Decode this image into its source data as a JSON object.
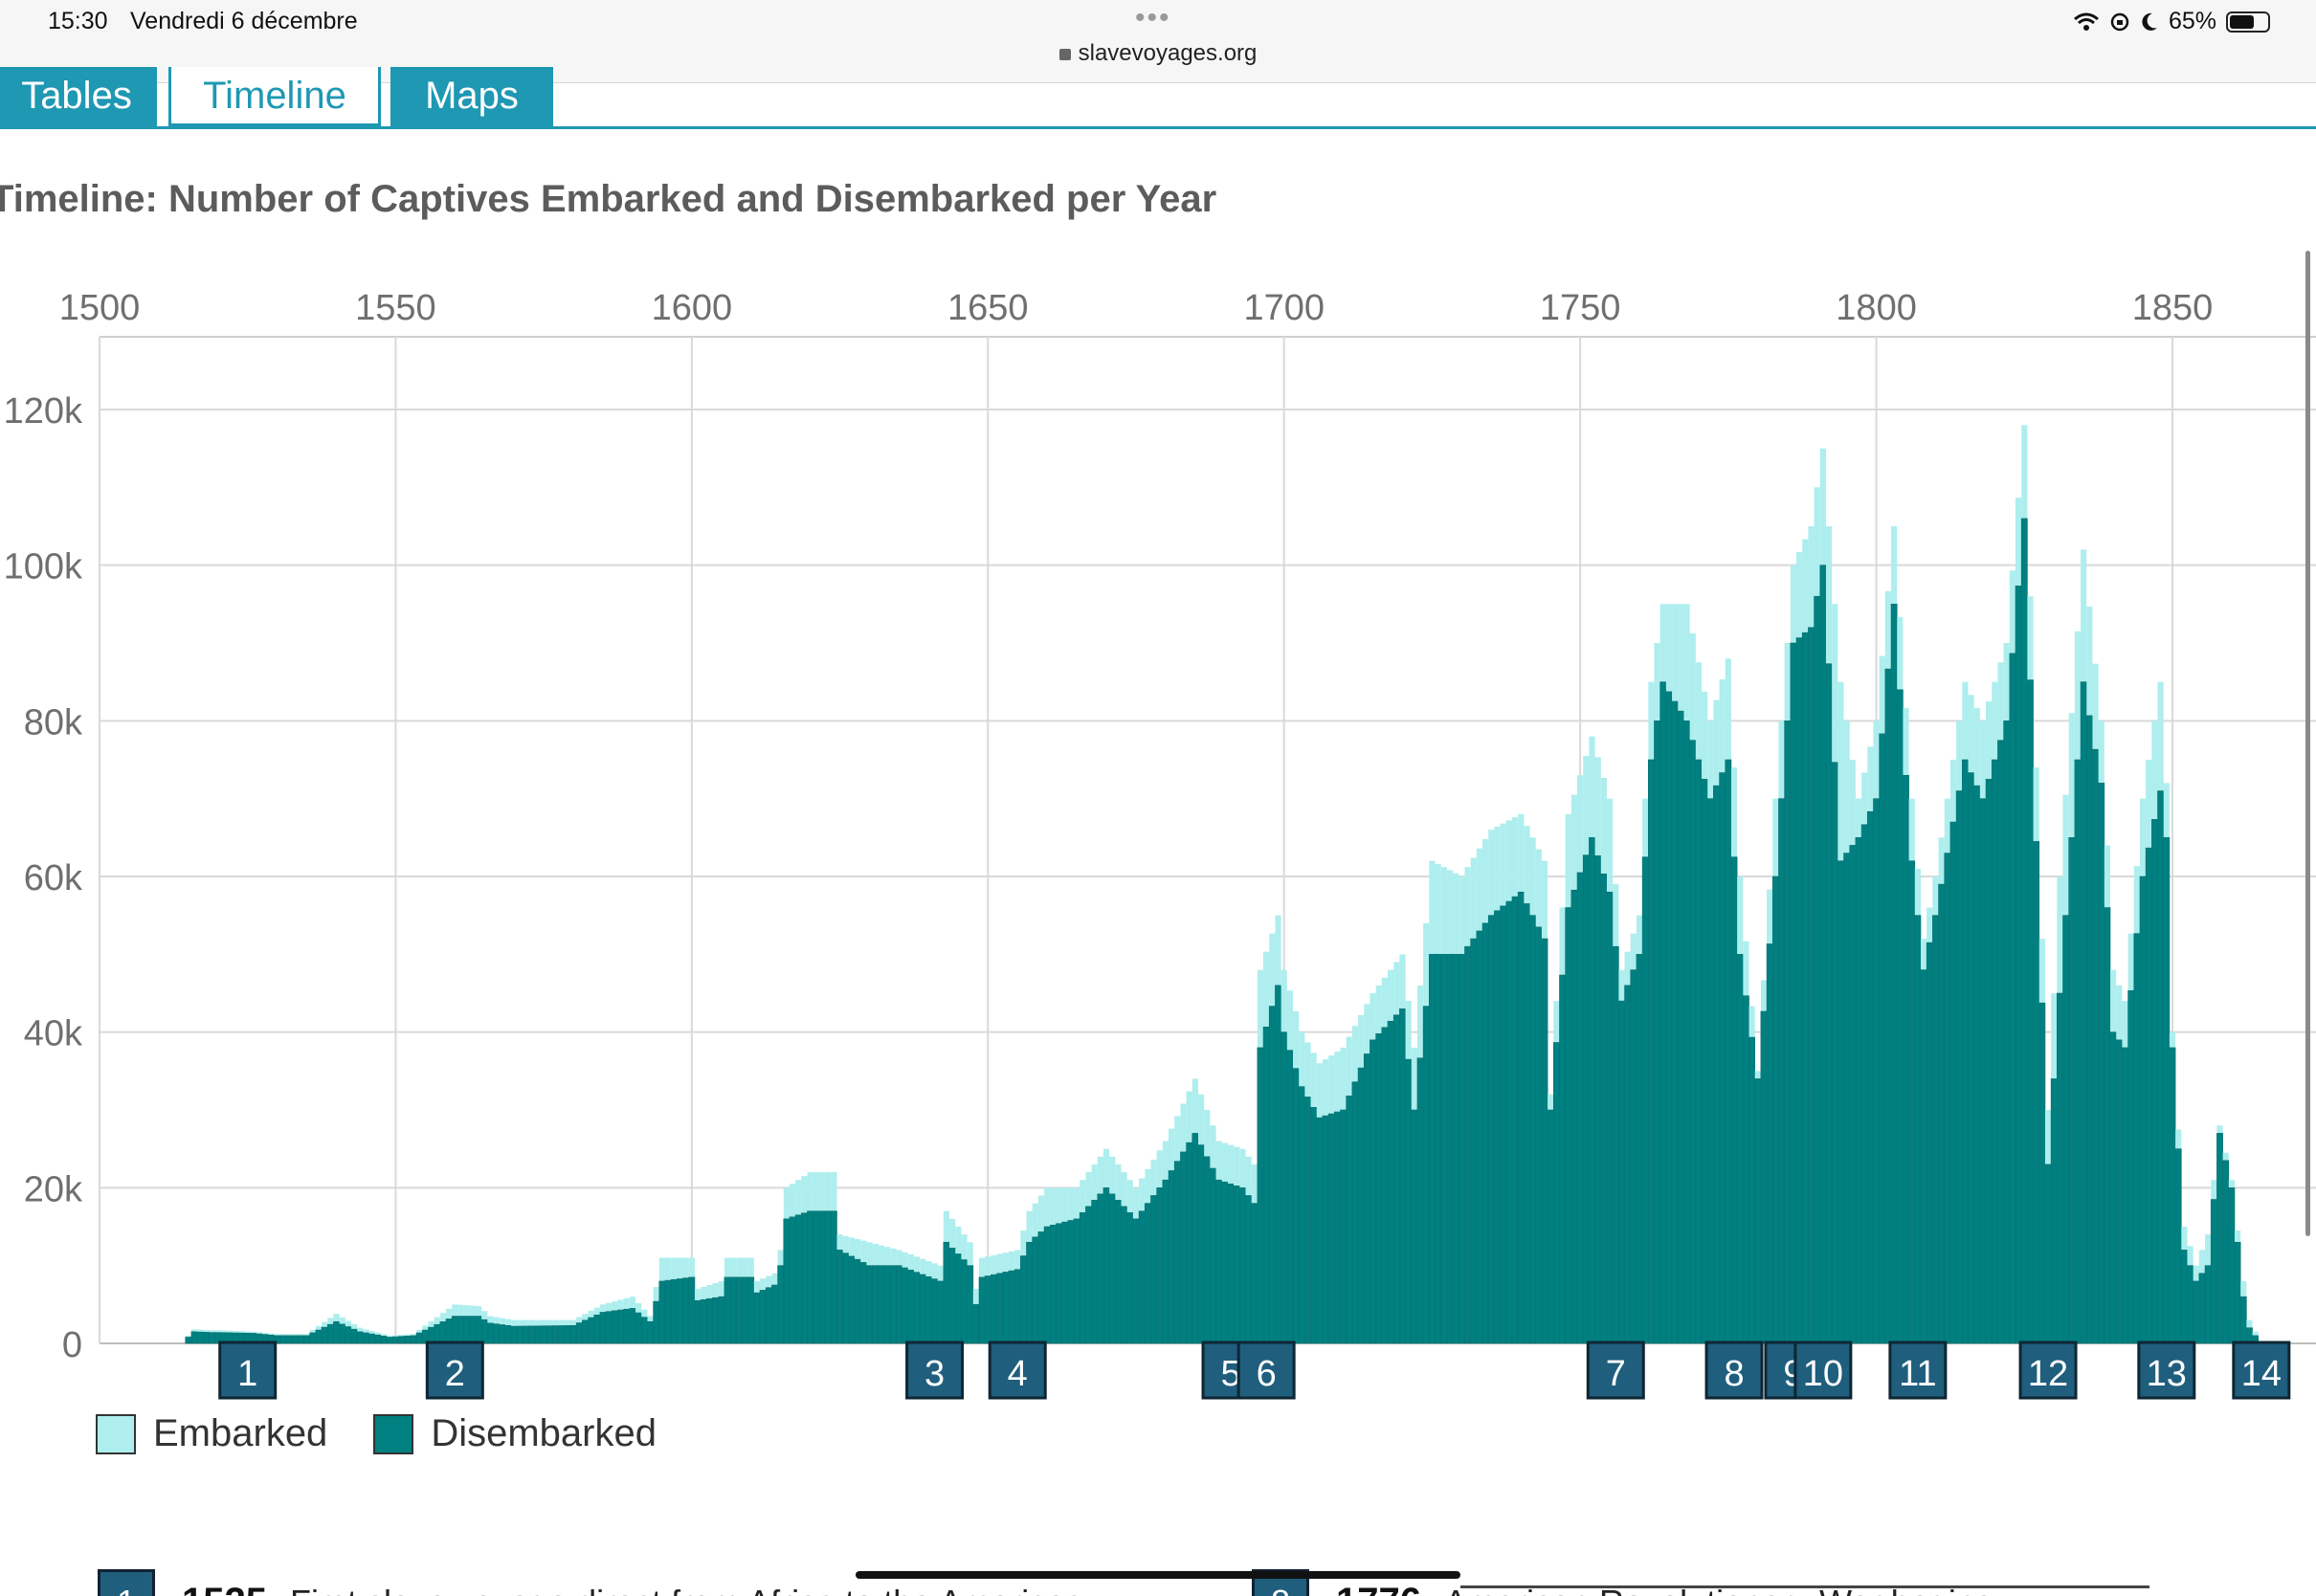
{
  "status_bar": {
    "time": "15:30",
    "date": "Vendredi 6 décembre",
    "url": "slavevoyages.org",
    "battery": "65%",
    "battery_level": 0.65,
    "icons": [
      "wifi-icon",
      "orientation-lock-icon",
      "moon-icon",
      "battery-icon"
    ]
  },
  "tabs": [
    {
      "label": "Tables",
      "active": false
    },
    {
      "label": "Timeline",
      "active": true
    },
    {
      "label": "Maps",
      "active": false
    }
  ],
  "colors": {
    "embarked": "#aeeeee",
    "disembarked": "#008080",
    "accent": "#1e98b3",
    "marker": "#1f5e7d"
  },
  "chart_data": {
    "type": "bar",
    "title": "Timeline: Number of Captives Embarked and Disembarked per Year",
    "xlabel": "",
    "ylabel": "",
    "xlim": [
      1500,
      1866
    ],
    "ylim": [
      0,
      130000
    ],
    "x_ticks": [
      "1500",
      "1550",
      "1600",
      "1650",
      "1700",
      "1750",
      "1800",
      "1850"
    ],
    "x_tick_values": [
      1500,
      1550,
      1600,
      1650,
      1700,
      1750,
      1800,
      1850
    ],
    "y_ticks": [
      "0",
      "20k",
      "40k",
      "60k",
      "80k",
      "100k",
      "120k"
    ],
    "y_tick_values": [
      0,
      20000,
      40000,
      60000,
      80000,
      100000,
      120000
    ],
    "grid": true,
    "legend_position": "bottom-left",
    "series_names": [
      "Embarked",
      "Disembarked"
    ],
    "stacked_overlay": true,
    "key_points": [
      [
        1514,
        0,
        0
      ],
      [
        1515,
        1000,
        800
      ],
      [
        1516,
        1800,
        1500
      ],
      [
        1519,
        1700,
        1400
      ],
      [
        1520,
        1700,
        1400
      ],
      [
        1526,
        1500,
        1300
      ],
      [
        1530,
        1200,
        1000
      ],
      [
        1535,
        1200,
        1000
      ],
      [
        1540,
        3800,
        2800
      ],
      [
        1544,
        2000,
        1500
      ],
      [
        1549,
        1000,
        800
      ],
      [
        1553,
        1200,
        1000
      ],
      [
        1560,
        5000,
        3500
      ],
      [
        1564,
        4800,
        3500
      ],
      [
        1566,
        3500,
        2600
      ],
      [
        1570,
        3000,
        2200
      ],
      [
        1580,
        3000,
        2300
      ],
      [
        1585,
        5000,
        4000
      ],
      [
        1590,
        6000,
        4500
      ],
      [
        1593,
        3500,
        2800
      ],
      [
        1595,
        11000,
        8000
      ],
      [
        1600,
        11000,
        8500
      ],
      [
        1601,
        7000,
        5500
      ],
      [
        1605,
        8000,
        6000
      ],
      [
        1606,
        11000,
        8500
      ],
      [
        1610,
        11000,
        8500
      ],
      [
        1611,
        8000,
        6500
      ],
      [
        1614,
        9000,
        7500
      ],
      [
        1615,
        12000,
        10000
      ],
      [
        1616,
        20000,
        16000
      ],
      [
        1620,
        22000,
        17000
      ],
      [
        1624,
        22000,
        17000
      ],
      [
        1625,
        14000,
        12000
      ],
      [
        1630,
        13000,
        10000
      ],
      [
        1635,
        12000,
        10000
      ],
      [
        1642,
        10000,
        8000
      ],
      [
        1643,
        17000,
        13000
      ],
      [
        1647,
        13000,
        10000
      ],
      [
        1648,
        7000,
        5000
      ],
      [
        1649,
        11000,
        8500
      ],
      [
        1655,
        12000,
        9500
      ],
      [
        1657,
        17000,
        13000
      ],
      [
        1660,
        20000,
        15000
      ],
      [
        1665,
        20000,
        16000
      ],
      [
        1670,
        25000,
        20000
      ],
      [
        1675,
        20000,
        16000
      ],
      [
        1680,
        26000,
        21000
      ],
      [
        1685,
        34000,
        27000
      ],
      [
        1689,
        26000,
        21000
      ],
      [
        1693,
        25000,
        20000
      ],
      [
        1695,
        23000,
        18000
      ],
      [
        1696,
        48000,
        38000
      ],
      [
        1699,
        55000,
        46000
      ],
      [
        1700,
        48000,
        40000
      ],
      [
        1703,
        40000,
        33000
      ],
      [
        1706,
        36000,
        29000
      ],
      [
        1710,
        38000,
        30000
      ],
      [
        1715,
        45000,
        39000
      ],
      [
        1720,
        50000,
        43000
      ],
      [
        1722,
        38000,
        30000
      ],
      [
        1725,
        62000,
        50000
      ],
      [
        1730,
        60000,
        50000
      ],
      [
        1735,
        66000,
        55000
      ],
      [
        1740,
        68000,
        58000
      ],
      [
        1744,
        62000,
        52000
      ],
      [
        1745,
        32000,
        30000
      ],
      [
        1748,
        68000,
        56000
      ],
      [
        1752,
        78000,
        65000
      ],
      [
        1755,
        70000,
        58000
      ],
      [
        1757,
        48000,
        44000
      ],
      [
        1760,
        55000,
        50000
      ],
      [
        1762,
        85000,
        75000
      ],
      [
        1764,
        95000,
        85000
      ],
      [
        1768,
        95000,
        80000
      ],
      [
        1772,
        80000,
        70000
      ],
      [
        1775,
        88000,
        75000
      ],
      [
        1777,
        60000,
        50000
      ],
      [
        1780,
        35000,
        34000
      ],
      [
        1783,
        70000,
        60000
      ],
      [
        1786,
        100000,
        90000
      ],
      [
        1789,
        105000,
        92000
      ],
      [
        1791,
        115000,
        100000
      ],
      [
        1794,
        85000,
        62000
      ],
      [
        1797,
        70000,
        65000
      ],
      [
        1800,
        80000,
        70000
      ],
      [
        1803,
        105000,
        95000
      ],
      [
        1806,
        70000,
        62000
      ],
      [
        1808,
        52000,
        48000
      ],
      [
        1810,
        60000,
        55000
      ],
      [
        1815,
        85000,
        75000
      ],
      [
        1818,
        80000,
        70000
      ],
      [
        1822,
        90000,
        80000
      ],
      [
        1825,
        118000,
        106000
      ],
      [
        1829,
        30000,
        23000
      ],
      [
        1831,
        60000,
        45000
      ],
      [
        1835,
        102000,
        85000
      ],
      [
        1838,
        80000,
        72000
      ],
      [
        1840,
        48000,
        40000
      ],
      [
        1842,
        44000,
        38000
      ],
      [
        1845,
        70000,
        60000
      ],
      [
        1848,
        85000,
        71000
      ],
      [
        1849,
        72000,
        65000
      ],
      [
        1850,
        40000,
        38000
      ],
      [
        1852,
        15000,
        12000
      ],
      [
        1854,
        10000,
        8000
      ],
      [
        1856,
        14000,
        10000
      ],
      [
        1858,
        28000,
        27000
      ],
      [
        1860,
        21000,
        20000
      ],
      [
        1862,
        8000,
        6000
      ],
      [
        1863,
        3000,
        2000
      ],
      [
        1865,
        0,
        0
      ]
    ],
    "markers": [
      {
        "id": "1",
        "year": 1525
      },
      {
        "id": "2",
        "year": 1560
      },
      {
        "id": "3",
        "year": 1641
      },
      {
        "id": "4",
        "year": 1655
      },
      {
        "id": "5",
        "year": 1691
      },
      {
        "id": "6",
        "year": 1697
      },
      {
        "id": "7",
        "year": 1756
      },
      {
        "id": "8",
        "year": 1776
      },
      {
        "id": "9",
        "year": 1786
      },
      {
        "id": "10",
        "year": 1791
      },
      {
        "id": "11",
        "year": 1807
      },
      {
        "id": "12",
        "year": 1829
      },
      {
        "id": "13",
        "year": 1849
      },
      {
        "id": "14",
        "year": 1865
      }
    ],
    "legend": [
      {
        "label": "Embarked",
        "color": "#aeeeee"
      },
      {
        "label": "Disembarked",
        "color": "#008080"
      }
    ]
  },
  "events": [
    {
      "id": "1",
      "year": "1525",
      "text": "First slave voyage direct from Africa to the Americas"
    },
    {
      "id": "8",
      "year": "1776",
      "text": "American Revolutionary War begins"
    }
  ]
}
